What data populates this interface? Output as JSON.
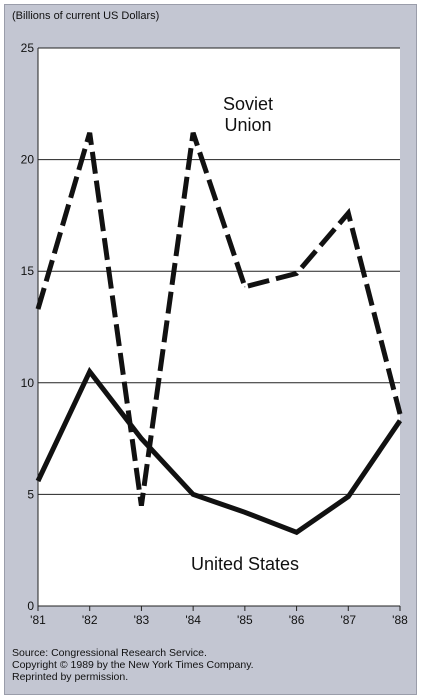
{
  "chart_data": {
    "type": "line",
    "units_label": "(Billions of current US Dollars)",
    "x": [
      "'81",
      "'82",
      "'83",
      "'84",
      "'85",
      "'86",
      "'87",
      "'88"
    ],
    "ylim": [
      0,
      25
    ],
    "yticks": [
      "0",
      "5",
      "10",
      "15",
      "20",
      "25"
    ],
    "grid": true,
    "series": [
      {
        "name": "Soviet Union",
        "label_lines": [
          "Soviet",
          "Union"
        ],
        "style": "dashed",
        "values": [
          13.3,
          21.2,
          4.5,
          21.2,
          14.3,
          14.9,
          17.6,
          8.6
        ]
      },
      {
        "name": "United States",
        "label_lines": [
          "United States"
        ],
        "style": "solid",
        "values": [
          5.6,
          10.5,
          7.5,
          5.0,
          4.2,
          3.3,
          4.9,
          8.3
        ]
      }
    ]
  },
  "source": {
    "line1": "Source: Congressional Research Service.",
    "line2": "Copyright © 1989 by the New York Times Company.",
    "line3": "Reprinted by permission."
  }
}
